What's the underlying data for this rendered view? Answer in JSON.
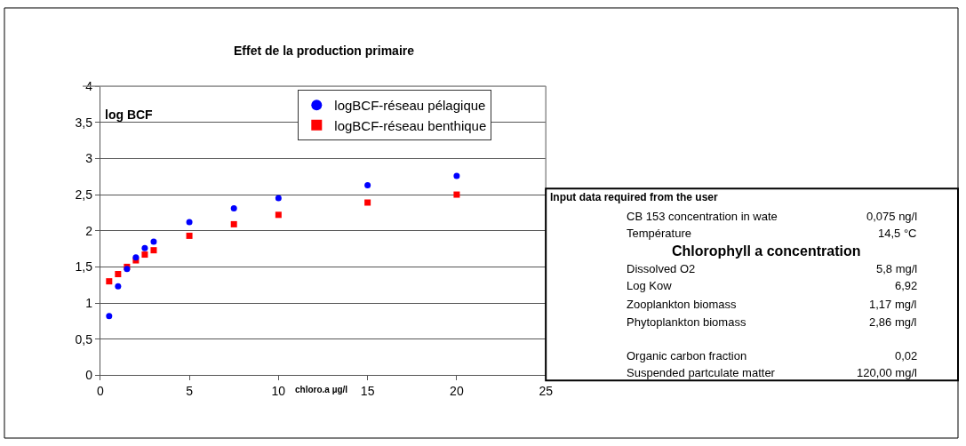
{
  "chart_data": {
    "type": "scatter",
    "title": "Effet de la production primaire",
    "xlabel": "chloro.a µg/l",
    "ylabel": "log BCF",
    "x": [
      0.5,
      1,
      1.5,
      2,
      2.5,
      3,
      5,
      7.5,
      10,
      15,
      20
    ],
    "series": [
      {
        "name": "logBCF-réseau pélagique",
        "color": "#0000ff",
        "marker": "circle",
        "values": [
          0.82,
          1.23,
          1.47,
          1.63,
          1.76,
          1.85,
          2.12,
          2.31,
          2.45,
          2.63,
          2.76
        ]
      },
      {
        "name": "logBCF-réseau benthique",
        "color": "#ff0000",
        "marker": "square",
        "values": [
          1.3,
          1.4,
          1.5,
          1.59,
          1.67,
          1.73,
          1.93,
          2.09,
          2.22,
          2.39,
          2.5
        ]
      }
    ],
    "xlim": [
      0,
      25
    ],
    "xticks": [
      0,
      5,
      10,
      15,
      20,
      25
    ],
    "ylim": [
      0,
      4
    ],
    "yticks": [
      0,
      {
        "value": 0.5,
        "label": "0,5"
      },
      1,
      {
        "value": 1.5,
        "label": "1,5"
      },
      2,
      {
        "value": 2.5,
        "label": "2,5"
      },
      3,
      {
        "value": 3.5,
        "label": "3,5"
      },
      4
    ],
    "grid": "y",
    "legend": "top right",
    "annotations": [
      "Input data required from the user",
      "CB 153 concentration in wate",
      "0,075 ng/l",
      "Température",
      "14,5 °C",
      "Chlorophyll a concentration",
      "Dissolved O2",
      "5,8 mg/l",
      "Log Kow",
      "6,92",
      "Zooplankton biomass",
      "1,17 mg/l",
      "Phytoplankton biomass",
      "2,86 mg/l",
      "Organic carbon fraction",
      "0,02",
      "Suspended partculate matter",
      "120,00 mg/l"
    ]
  }
}
